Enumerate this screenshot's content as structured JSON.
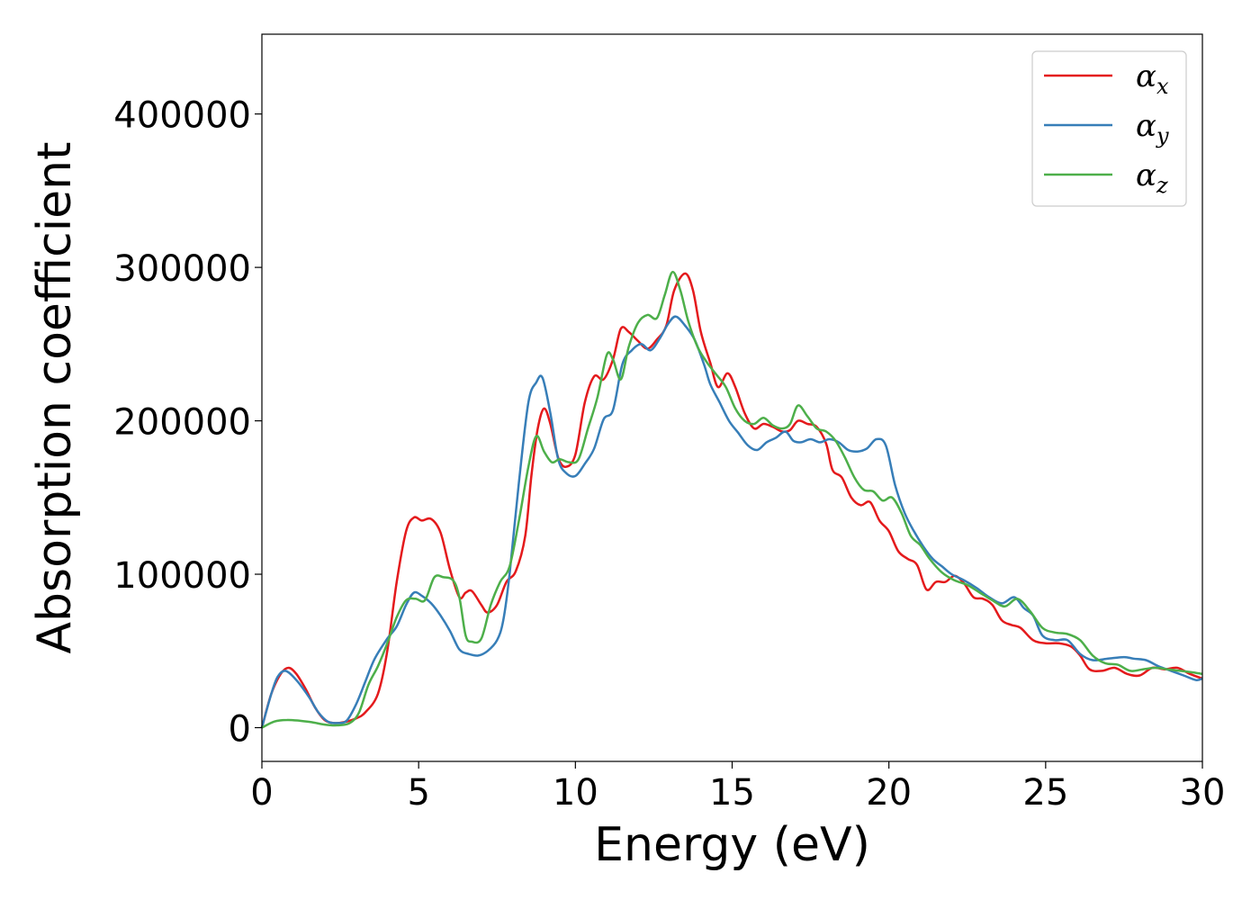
{
  "chart_data": {
    "type": "line",
    "title": "",
    "xlabel": "Energy (eV)",
    "ylabel": "Absorption coefficient",
    "xlim": [
      0,
      30
    ],
    "ylim": [
      -22000,
      452000
    ],
    "xticks": [
      0,
      5,
      10,
      15,
      20,
      25,
      30
    ],
    "xtick_labels": [
      "0",
      "5",
      "10",
      "15",
      "20",
      "25",
      "30"
    ],
    "yticks": [
      0,
      100000,
      200000,
      300000,
      400000
    ],
    "ytick_labels": [
      "0",
      "100000",
      "200000",
      "300000",
      "400000"
    ],
    "grid": false,
    "legend_position": "top-right",
    "colors": {
      "x": "#e41a1c",
      "y": "#377eb8",
      "z": "#4daf4a"
    },
    "series": [
      {
        "name": "α",
        "subscript": "x",
        "key": "x",
        "points": [
          [
            0,
            0
          ],
          [
            0.3,
            22000
          ],
          [
            0.6,
            35000
          ],
          [
            0.85,
            39000
          ],
          [
            1.1,
            35000
          ],
          [
            1.4,
            25000
          ],
          [
            1.7,
            13000
          ],
          [
            2.0,
            5000
          ],
          [
            2.3,
            3000
          ],
          [
            2.6,
            3500
          ],
          [
            3.0,
            6000
          ],
          [
            3.3,
            10000
          ],
          [
            3.7,
            22000
          ],
          [
            4.0,
            50000
          ],
          [
            4.3,
            95000
          ],
          [
            4.6,
            128000
          ],
          [
            4.85,
            137000
          ],
          [
            5.1,
            135000
          ],
          [
            5.4,
            136000
          ],
          [
            5.7,
            127000
          ],
          [
            6.0,
            103000
          ],
          [
            6.3,
            85000
          ],
          [
            6.5,
            88000
          ],
          [
            6.7,
            89000
          ],
          [
            7.0,
            80000
          ],
          [
            7.2,
            75000
          ],
          [
            7.5,
            80000
          ],
          [
            7.8,
            95000
          ],
          [
            8.1,
            102000
          ],
          [
            8.4,
            125000
          ],
          [
            8.6,
            165000
          ],
          [
            8.8,
            195000
          ],
          [
            9.0,
            208000
          ],
          [
            9.2,
            198000
          ],
          [
            9.45,
            176000
          ],
          [
            9.7,
            170000
          ],
          [
            10.0,
            178000
          ],
          [
            10.3,
            212000
          ],
          [
            10.6,
            229000
          ],
          [
            10.9,
            227000
          ],
          [
            11.2,
            240000
          ],
          [
            11.45,
            260000
          ],
          [
            11.7,
            258000
          ],
          [
            12.0,
            252000
          ],
          [
            12.3,
            247000
          ],
          [
            12.6,
            253000
          ],
          [
            12.9,
            262000
          ],
          [
            13.15,
            285000
          ],
          [
            13.5,
            296000
          ],
          [
            13.75,
            285000
          ],
          [
            14.0,
            258000
          ],
          [
            14.3,
            238000
          ],
          [
            14.55,
            222000
          ],
          [
            14.85,
            231000
          ],
          [
            15.1,
            222000
          ],
          [
            15.4,
            205000
          ],
          [
            15.7,
            195000
          ],
          [
            16.0,
            198000
          ],
          [
            16.3,
            196000
          ],
          [
            16.6,
            193000
          ],
          [
            16.85,
            194000
          ],
          [
            17.1,
            200000
          ],
          [
            17.4,
            198000
          ],
          [
            17.7,
            196000
          ],
          [
            18.0,
            185000
          ],
          [
            18.2,
            168000
          ],
          [
            18.5,
            163000
          ],
          [
            18.8,
            150000
          ],
          [
            19.1,
            145000
          ],
          [
            19.4,
            147000
          ],
          [
            19.7,
            135000
          ],
          [
            20.0,
            128000
          ],
          [
            20.3,
            115000
          ],
          [
            20.6,
            110000
          ],
          [
            20.9,
            106000
          ],
          [
            21.2,
            90000
          ],
          [
            21.5,
            95000
          ],
          [
            21.8,
            95000
          ],
          [
            22.1,
            99000
          ],
          [
            22.4,
            94000
          ],
          [
            22.7,
            85000
          ],
          [
            23.0,
            84000
          ],
          [
            23.3,
            80000
          ],
          [
            23.6,
            70000
          ],
          [
            23.9,
            67000
          ],
          [
            24.2,
            65000
          ],
          [
            24.6,
            57000
          ],
          [
            25.0,
            55000
          ],
          [
            25.4,
            55000
          ],
          [
            25.8,
            53000
          ],
          [
            26.1,
            47000
          ],
          [
            26.4,
            38000
          ],
          [
            26.8,
            37000
          ],
          [
            27.2,
            39000
          ],
          [
            27.6,
            35000
          ],
          [
            28.0,
            34000
          ],
          [
            28.4,
            39000
          ],
          [
            28.8,
            38000
          ],
          [
            29.2,
            39000
          ],
          [
            29.6,
            35000
          ],
          [
            30.0,
            32000
          ]
        ]
      },
      {
        "name": "α",
        "subscript": "y",
        "key": "y",
        "points": [
          [
            0,
            0
          ],
          [
            0.3,
            22000
          ],
          [
            0.5,
            33000
          ],
          [
            0.75,
            37000
          ],
          [
            1.1,
            31000
          ],
          [
            1.5,
            20000
          ],
          [
            1.8,
            10000
          ],
          [
            2.1,
            4000
          ],
          [
            2.4,
            3000
          ],
          [
            2.7,
            4500
          ],
          [
            3.0,
            15000
          ],
          [
            3.3,
            30000
          ],
          [
            3.6,
            45000
          ],
          [
            4.0,
            58000
          ],
          [
            4.3,
            66000
          ],
          [
            4.6,
            80000
          ],
          [
            4.85,
            88000
          ],
          [
            5.1,
            86000
          ],
          [
            5.4,
            81000
          ],
          [
            5.7,
            73000
          ],
          [
            6.0,
            63000
          ],
          [
            6.3,
            51000
          ],
          [
            6.6,
            48000
          ],
          [
            6.9,
            47000
          ],
          [
            7.2,
            50000
          ],
          [
            7.5,
            57000
          ],
          [
            7.7,
            70000
          ],
          [
            7.9,
            100000
          ],
          [
            8.2,
            160000
          ],
          [
            8.5,
            212000
          ],
          [
            8.75,
            225000
          ],
          [
            8.95,
            228000
          ],
          [
            9.2,
            205000
          ],
          [
            9.45,
            175000
          ],
          [
            9.7,
            166000
          ],
          [
            10.0,
            164000
          ],
          [
            10.3,
            172000
          ],
          [
            10.6,
            182000
          ],
          [
            10.9,
            201000
          ],
          [
            11.2,
            207000
          ],
          [
            11.5,
            237000
          ],
          [
            11.8,
            246000
          ],
          [
            12.1,
            250000
          ],
          [
            12.4,
            246000
          ],
          [
            12.7,
            254000
          ],
          [
            12.95,
            263000
          ],
          [
            13.2,
            268000
          ],
          [
            13.5,
            262000
          ],
          [
            13.8,
            253000
          ],
          [
            14.1,
            237000
          ],
          [
            14.3,
            224000
          ],
          [
            14.6,
            212000
          ],
          [
            14.9,
            200000
          ],
          [
            15.2,
            192000
          ],
          [
            15.5,
            184000
          ],
          [
            15.8,
            181000
          ],
          [
            16.1,
            186000
          ],
          [
            16.4,
            189000
          ],
          [
            16.7,
            193000
          ],
          [
            16.95,
            187000
          ],
          [
            17.2,
            186000
          ],
          [
            17.5,
            188000
          ],
          [
            17.8,
            186000
          ],
          [
            18.1,
            188000
          ],
          [
            18.4,
            186000
          ],
          [
            18.7,
            181000
          ],
          [
            19.0,
            180000
          ],
          [
            19.3,
            182000
          ],
          [
            19.6,
            188000
          ],
          [
            19.9,
            184000
          ],
          [
            20.2,
            158000
          ],
          [
            20.5,
            140000
          ],
          [
            20.8,
            128000
          ],
          [
            21.1,
            118000
          ],
          [
            21.4,
            110000
          ],
          [
            21.7,
            105000
          ],
          [
            22.0,
            100000
          ],
          [
            22.4,
            96000
          ],
          [
            22.8,
            91000
          ],
          [
            23.2,
            85000
          ],
          [
            23.6,
            81000
          ],
          [
            24.0,
            85000
          ],
          [
            24.3,
            78000
          ],
          [
            24.6,
            73000
          ],
          [
            24.9,
            60000
          ],
          [
            25.3,
            57000
          ],
          [
            25.7,
            57000
          ],
          [
            26.1,
            48000
          ],
          [
            26.5,
            44000
          ],
          [
            27.0,
            45000
          ],
          [
            27.5,
            46000
          ],
          [
            27.8,
            45000
          ],
          [
            28.2,
            44000
          ],
          [
            28.6,
            40000
          ],
          [
            29.0,
            37000
          ],
          [
            29.4,
            34000
          ],
          [
            29.8,
            31000
          ],
          [
            30.0,
            32000
          ]
        ]
      },
      {
        "name": "α",
        "subscript": "z",
        "key": "z",
        "points": [
          [
            0,
            0
          ],
          [
            0.4,
            4000
          ],
          [
            0.8,
            5000
          ],
          [
            1.2,
            4500
          ],
          [
            1.6,
            3500
          ],
          [
            2.0,
            2000
          ],
          [
            2.4,
            1500
          ],
          [
            2.8,
            3000
          ],
          [
            3.1,
            10000
          ],
          [
            3.4,
            28000
          ],
          [
            3.7,
            40000
          ],
          [
            4.0,
            55000
          ],
          [
            4.3,
            72000
          ],
          [
            4.6,
            83000
          ],
          [
            4.9,
            84000
          ],
          [
            5.2,
            83000
          ],
          [
            5.5,
            98000
          ],
          [
            5.8,
            98000
          ],
          [
            6.1,
            96000
          ],
          [
            6.3,
            85000
          ],
          [
            6.5,
            60000
          ],
          [
            6.7,
            56000
          ],
          [
            7.0,
            58000
          ],
          [
            7.3,
            80000
          ],
          [
            7.6,
            95000
          ],
          [
            7.9,
            105000
          ],
          [
            8.2,
            135000
          ],
          [
            8.5,
            170000
          ],
          [
            8.75,
            190000
          ],
          [
            9.0,
            180000
          ],
          [
            9.25,
            173000
          ],
          [
            9.5,
            175000
          ],
          [
            9.8,
            173000
          ],
          [
            10.1,
            175000
          ],
          [
            10.4,
            195000
          ],
          [
            10.7,
            215000
          ],
          [
            11.0,
            243000
          ],
          [
            11.2,
            240000
          ],
          [
            11.45,
            227000
          ],
          [
            11.7,
            248000
          ],
          [
            12.0,
            264000
          ],
          [
            12.3,
            269000
          ],
          [
            12.6,
            267000
          ],
          [
            12.85,
            282000
          ],
          [
            13.1,
            297000
          ],
          [
            13.35,
            285000
          ],
          [
            13.6,
            265000
          ],
          [
            13.9,
            248000
          ],
          [
            14.2,
            238000
          ],
          [
            14.5,
            230000
          ],
          [
            14.8,
            222000
          ],
          [
            15.1,
            208000
          ],
          [
            15.4,
            200000
          ],
          [
            15.7,
            198000
          ],
          [
            16.0,
            202000
          ],
          [
            16.3,
            197000
          ],
          [
            16.6,
            195000
          ],
          [
            16.85,
            198000
          ],
          [
            17.1,
            210000
          ],
          [
            17.4,
            203000
          ],
          [
            17.7,
            195000
          ],
          [
            18.0,
            193000
          ],
          [
            18.3,
            187000
          ],
          [
            18.6,
            176000
          ],
          [
            18.9,
            163000
          ],
          [
            19.2,
            155000
          ],
          [
            19.5,
            154000
          ],
          [
            19.8,
            148000
          ],
          [
            20.1,
            150000
          ],
          [
            20.4,
            140000
          ],
          [
            20.7,
            125000
          ],
          [
            21.0,
            119000
          ],
          [
            21.3,
            110000
          ],
          [
            21.7,
            101000
          ],
          [
            22.1,
            96000
          ],
          [
            22.5,
            93000
          ],
          [
            22.9,
            88000
          ],
          [
            23.3,
            83000
          ],
          [
            23.7,
            79000
          ],
          [
            24.1,
            84000
          ],
          [
            24.5,
            76000
          ],
          [
            24.9,
            65000
          ],
          [
            25.3,
            62000
          ],
          [
            25.7,
            61000
          ],
          [
            26.1,
            57000
          ],
          [
            26.5,
            47000
          ],
          [
            26.9,
            42000
          ],
          [
            27.3,
            41000
          ],
          [
            27.7,
            37000
          ],
          [
            28.1,
            38000
          ],
          [
            28.5,
            39000
          ],
          [
            28.9,
            38000
          ],
          [
            29.3,
            37000
          ],
          [
            29.7,
            36000
          ],
          [
            30.0,
            35000
          ]
        ]
      }
    ]
  }
}
